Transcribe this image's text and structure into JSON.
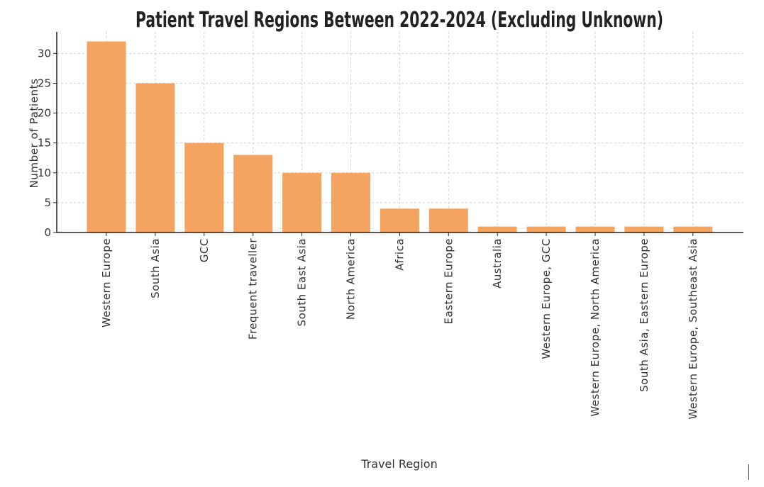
{
  "chart_data": {
    "type": "bar",
    "title": "Patient Travel Regions Between 2022-2024 (Excluding Unknown)",
    "xlabel": "Travel Region",
    "ylabel": "Number of Patients",
    "categories": [
      "Western Europe",
      "South Asia",
      "GCC",
      "Frequent traveller",
      "South East Asia",
      "North America",
      "Africa",
      "Eastern Europe",
      "Australia",
      "Western Europe, GCC",
      "Western Europe, North America",
      "South Asia, Eastern Europe",
      "Western Europe, Southeast Asia"
    ],
    "values": [
      32,
      25,
      15,
      13,
      10,
      10,
      4,
      4,
      1,
      1,
      1,
      1,
      1
    ],
    "ylim": [
      0,
      33.6
    ],
    "yticks": [
      0,
      5,
      10,
      15,
      20,
      25,
      30
    ],
    "grid": true,
    "bar_color": "#f4a460",
    "legend": "none"
  }
}
